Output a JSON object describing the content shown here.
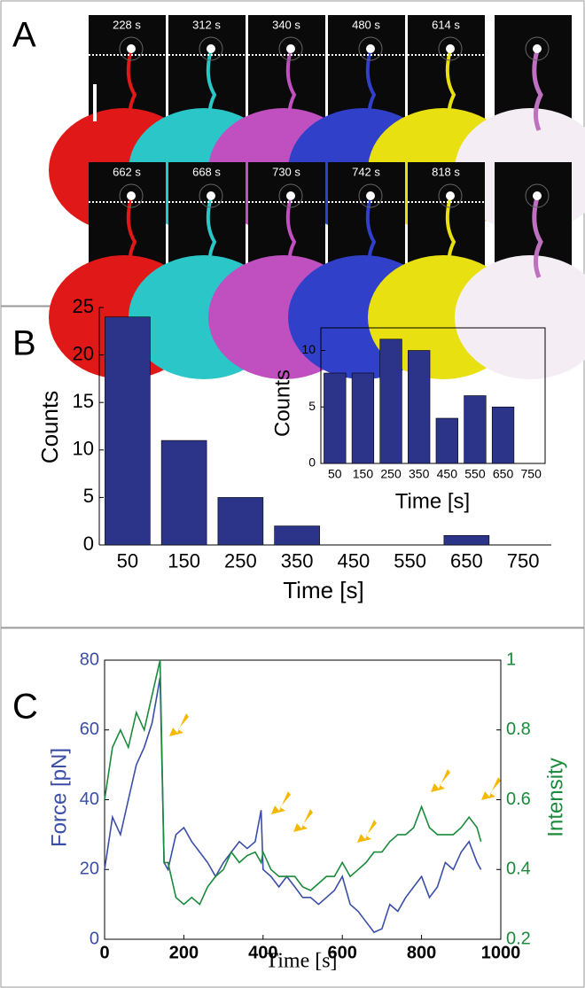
{
  "panel_a": {
    "label": "A",
    "rows": [
      [
        "228 s",
        "312 s",
        "340 s",
        "480 s",
        "614 s"
      ],
      [
        "662 s",
        "668 s",
        "730 s",
        "742 s",
        "818 s"
      ]
    ]
  },
  "chart_data": [
    {
      "type": "bar",
      "panel_label": "B",
      "categories": [
        "50",
        "150",
        "250",
        "350",
        "450",
        "550",
        "650",
        "750"
      ],
      "values": [
        24,
        11,
        5,
        2,
        0,
        0,
        1,
        0
      ],
      "color": "#2b3488",
      "ylim": [
        0,
        25
      ],
      "yticks": [
        0,
        5,
        10,
        15,
        20,
        25
      ],
      "xlabel": "Time [s]",
      "ylabel": "Counts"
    },
    {
      "type": "bar",
      "categories": [
        "50",
        "150",
        "250",
        "350",
        "450",
        "550",
        "650",
        "750"
      ],
      "values": [
        8,
        8,
        11,
        10,
        4,
        6,
        5,
        0
      ],
      "color": "#2b3488",
      "ylim": [
        0,
        12
      ],
      "yticks": [
        0,
        5,
        10
      ],
      "xlabel": "Time [s]",
      "ylabel": "Counts"
    },
    {
      "type": "line",
      "panel_label": "C",
      "x": [
        0,
        20,
        40,
        60,
        80,
        100,
        120,
        140,
        150,
        160,
        180,
        200,
        220,
        240,
        260,
        280,
        300,
        320,
        340,
        360,
        380,
        395,
        400,
        420,
        440,
        460,
        480,
        500,
        520,
        540,
        560,
        580,
        600,
        620,
        640,
        660,
        680,
        700,
        720,
        740,
        760,
        780,
        800,
        820,
        840,
        860,
        880,
        900,
        920,
        940,
        950
      ],
      "series": [
        {
          "name": "Force [pN]",
          "color": "#3b4ea6",
          "values": [
            20,
            35,
            30,
            40,
            50,
            55,
            62,
            75,
            22,
            20,
            30,
            32,
            28,
            25,
            22,
            18,
            22,
            25,
            28,
            26,
            28,
            37,
            20,
            18,
            15,
            18,
            15,
            12,
            12,
            10,
            12,
            14,
            18,
            10,
            8,
            5,
            2,
            3,
            10,
            8,
            12,
            15,
            18,
            12,
            15,
            22,
            20,
            25,
            28,
            22,
            20
          ]
        },
        {
          "name": "Intensity",
          "color": "#1b8a3c",
          "axis": "y2",
          "values": [
            0.6,
            0.75,
            0.8,
            0.75,
            0.85,
            0.8,
            0.9,
            1,
            0.42,
            0.42,
            0.32,
            0.3,
            0.32,
            0.3,
            0.35,
            0.38,
            0.4,
            0.45,
            0.42,
            0.44,
            0.45,
            0.42,
            0.45,
            0.4,
            0.38,
            0.38,
            0.38,
            0.35,
            0.34,
            0.36,
            0.38,
            0.38,
            0.42,
            0.38,
            0.4,
            0.42,
            0.45,
            0.45,
            0.48,
            0.5,
            0.5,
            0.52,
            0.58,
            0.52,
            0.5,
            0.5,
            0.5,
            0.52,
            0.55,
            0.52,
            0.48
          ]
        }
      ],
      "xlim": [
        0,
        1000
      ],
      "xticks": [
        0,
        200,
        400,
        600,
        800,
        1000
      ],
      "ylim": [
        0,
        80
      ],
      "yticks": [
        0,
        20,
        40,
        60,
        80
      ],
      "y2lim": [
        0.2,
        1
      ],
      "y2ticks": [
        0.2,
        0.4,
        0.6,
        0.8,
        1
      ],
      "xlabel": "Time [s]",
      "ylabel": "Force [pN]",
      "y2label": "Intensity"
    }
  ]
}
